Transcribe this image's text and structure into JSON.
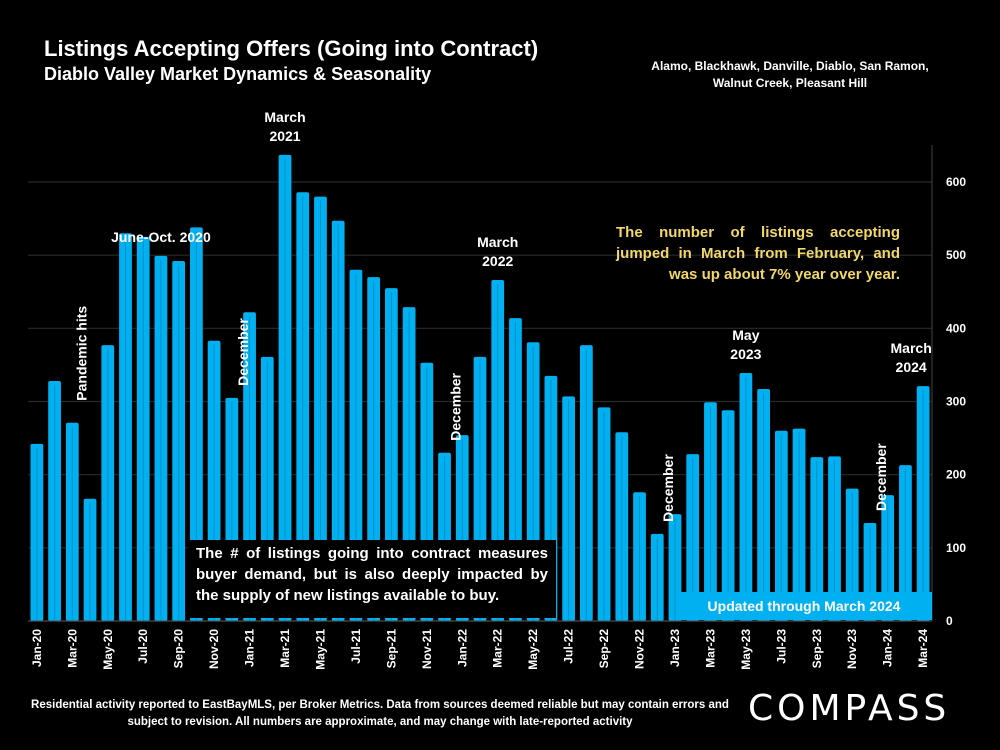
{
  "chart_data": {
    "type": "bar",
    "title": "Listings Accepting Offers (Going into Contract)",
    "subtitle": "Diablo Valley Market Dynamics & Seasonality",
    "regions": "Alamo, Blackhawk, Danville, Diablo, San Ramon, Walnut Creek, Pleasant Hill",
    "xlabel": "",
    "ylabel": "",
    "ylim": [
      0,
      650
    ],
    "yticks": [
      0,
      100,
      200,
      300,
      400,
      500,
      600
    ],
    "y_axis_side": "right",
    "grid": true,
    "bar_color": "#00b0f0",
    "categories": [
      "Jan-20",
      "Feb-20",
      "Mar-20",
      "Apr-20",
      "May-20",
      "Jun-20",
      "Jul-20",
      "Aug-20",
      "Sep-20",
      "Oct-20",
      "Nov-20",
      "Dec-20",
      "Jan-21",
      "Feb-21",
      "Mar-21",
      "Apr-21",
      "May-21",
      "Jun-21",
      "Jul-21",
      "Aug-21",
      "Sep-21",
      "Oct-21",
      "Nov-21",
      "Dec-21",
      "Jan-22",
      "Feb-22",
      "Mar-22",
      "Apr-22",
      "May-22",
      "Jun-22",
      "Jul-22",
      "Aug-22",
      "Sep-22",
      "Oct-22",
      "Nov-22",
      "Dec-22",
      "Jan-23",
      "Feb-23",
      "Mar-23",
      "Apr-23",
      "May-23",
      "Jun-23",
      "Jul-23",
      "Aug-23",
      "Sep-23",
      "Oct-23",
      "Nov-23",
      "Dec-23",
      "Jan-24",
      "Feb-24",
      "Mar-24"
    ],
    "tick_labels_shown": [
      "Jan-20",
      "Mar-20",
      "May-20",
      "Jul-20",
      "Sep-20",
      "Nov-20",
      "Jan-21",
      "Mar-21",
      "May-21",
      "Jul-21",
      "Sep-21",
      "Nov-21",
      "Jan-22",
      "Mar-22",
      "May-22",
      "Jul-22",
      "Sep-22",
      "Nov-22",
      "Jan-23",
      "Mar-23",
      "May-23",
      "Jul-23",
      "Sep-23",
      "Nov-23",
      "Jan-24",
      "Mar-24"
    ],
    "values": [
      242,
      328,
      271,
      167,
      377,
      530,
      525,
      499,
      492,
      538,
      383,
      305,
      422,
      361,
      637,
      586,
      580,
      547,
      480,
      470,
      455,
      429,
      353,
      230,
      254,
      361,
      466,
      414,
      381,
      335,
      307,
      377,
      292,
      258,
      176,
      119,
      146,
      228,
      299,
      288,
      339,
      317,
      260,
      263,
      224,
      225,
      181,
      134,
      172,
      213,
      321
    ],
    "annotations": [
      {
        "text": "Pandemic hits",
        "at": "Mar-20",
        "rotated": true
      },
      {
        "text": "June-Oct. 2020",
        "at": "Aug-20",
        "rotated": false
      },
      {
        "text": "December",
        "at": "Dec-20",
        "rotated": true
      },
      {
        "text": "March\n2021",
        "at": "Mar-21",
        "rotated": false
      },
      {
        "text": "December",
        "at": "Dec-21",
        "rotated": true
      },
      {
        "text": "March\n2022",
        "at": "Mar-22",
        "rotated": false
      },
      {
        "text": "December",
        "at": "Dec-22",
        "rotated": true
      },
      {
        "text": "May\n2023",
        "at": "May-23",
        "rotated": false
      },
      {
        "text": "December",
        "at": "Dec-23",
        "rotated": true
      },
      {
        "text": "March\n2024",
        "at": "Mar-24",
        "rotated": false
      }
    ]
  },
  "notes": {
    "yellow": "The number of listings accepting jumped in March from February, and was up about 7% year over year.",
    "box": "The # of listings going into contract measures buyer demand, but is also deeply impacted by the supply of new listings available to buy.",
    "updated": "Updated through March 2024"
  },
  "footer": {
    "disclaimer": "Residential activity reported to EastBayMLS, per Broker Metrics. Data from sources deemed reliable but may contain errors and subject to revision. All numbers are approximate, and may change with late-reported activity",
    "logo": "COMPASS"
  }
}
